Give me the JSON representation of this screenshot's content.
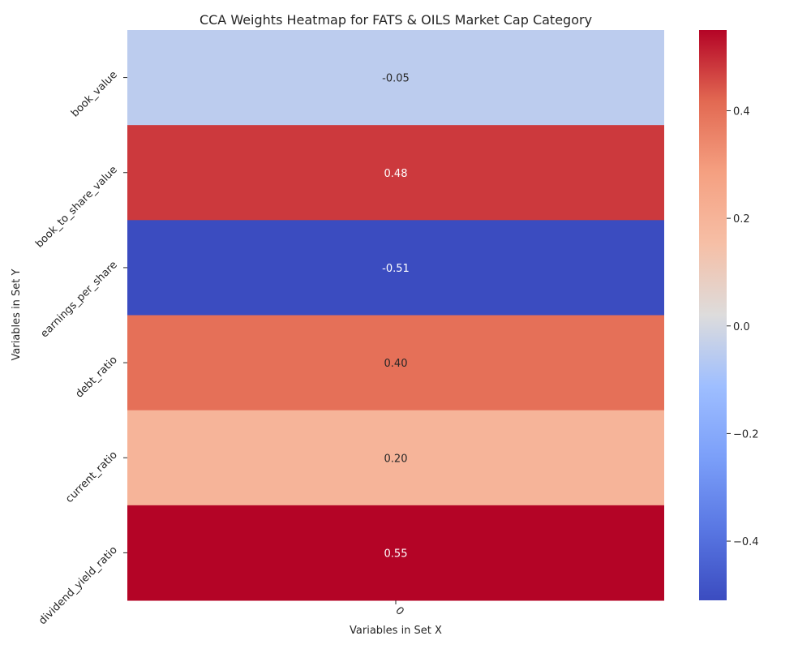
{
  "chart_data": {
    "type": "heatmap",
    "title": "CCA Weights Heatmap for FATS & OILS Market Cap Category",
    "xlabel": "Variables in Set X",
    "ylabel": "Variables in Set Y",
    "x_categories": [
      "0"
    ],
    "y_categories": [
      "book_value",
      "book_to_share_value",
      "earnings_per_share",
      "debt_ratio",
      "current_ratio",
      "dividend_yield_ratio"
    ],
    "values": [
      [
        -0.05
      ],
      [
        0.48
      ],
      [
        -0.51
      ],
      [
        0.4
      ],
      [
        0.2
      ],
      [
        0.55
      ]
    ],
    "value_labels": [
      "-0.05",
      "0.48",
      "-0.51",
      "0.40",
      "0.20",
      "0.55"
    ],
    "colormap": "coolwarm",
    "vmin": -0.51,
    "vmax": 0.55,
    "colorbar_ticks": [
      -0.4,
      -0.2,
      0.0,
      0.2,
      0.4
    ],
    "colorbar_tick_labels": [
      "−0.4",
      "−0.2",
      "0.0",
      "0.2",
      "0.4"
    ],
    "legend": "colorbar-right"
  }
}
